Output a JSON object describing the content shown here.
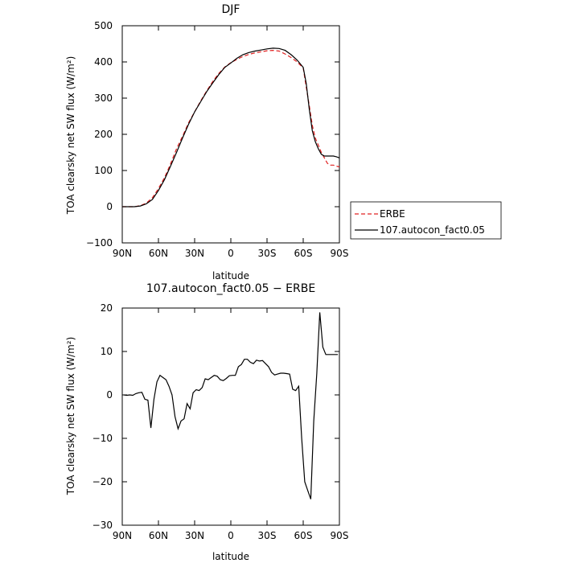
{
  "chart_data": [
    {
      "type": "line",
      "title": "DJF",
      "xlabel": "latitude",
      "ylabel": "TOA clearsky net SW flux (W/m²)",
      "xlim": [
        90,
        -90
      ],
      "ylim": [
        -100,
        500
      ],
      "x_ticks": [
        90,
        60,
        30,
        0,
        -30,
        -60,
        -90
      ],
      "x_tick_labels": [
        "90N",
        "60N",
        "30N",
        "0",
        "30S",
        "60S",
        "90S"
      ],
      "y_ticks": [
        -100,
        0,
        100,
        200,
        300,
        400,
        500
      ],
      "y_tick_labels": [
        "−100",
        "0",
        "100",
        "200",
        "300",
        "400",
        "500"
      ],
      "legend_placement": "right",
      "series": [
        {
          "name": "ERBE",
          "color": "#e02020",
          "dash": "dashed",
          "x": [
            90,
            85,
            80,
            75,
            70,
            65,
            60,
            55,
            50,
            45,
            40,
            35,
            30,
            25,
            20,
            15,
            10,
            5,
            0,
            -5,
            -10,
            -15,
            -20,
            -25,
            -30,
            -35,
            -40,
            -45,
            -50,
            -55,
            -60,
            -62.5,
            -65,
            -67.5,
            -70,
            -72.5,
            -75,
            -77.5,
            -80,
            -82.5,
            -85,
            -87.5,
            -90
          ],
          "y": [
            0,
            0,
            0,
            3,
            10,
            25,
            50,
            80,
            118,
            160,
            195,
            232,
            262,
            292,
            320,
            346,
            368,
            386,
            398,
            407,
            415,
            421,
            425,
            428,
            431,
            432,
            430,
            422,
            412,
            400,
            383,
            330,
            280,
            225,
            190,
            170,
            150,
            135,
            120,
            115,
            115,
            112,
            110
          ]
        },
        {
          "name": "107.autocon_fact0.05",
          "color": "#000000",
          "dash": "solid",
          "x": [
            90,
            85,
            80,
            75,
            70,
            65,
            60,
            55,
            50,
            45,
            40,
            35,
            30,
            25,
            20,
            15,
            10,
            5,
            0,
            -5,
            -10,
            -15,
            -20,
            -25,
            -30,
            -35,
            -40,
            -45,
            -50,
            -55,
            -60,
            -62.5,
            -65,
            -67.5,
            -70,
            -72.5,
            -75,
            -77.5,
            -80,
            -82.5,
            -85,
            -87.5,
            -90
          ],
          "y": [
            0,
            0,
            0,
            2,
            8,
            20,
            45,
            75,
            112,
            150,
            190,
            228,
            262,
            290,
            318,
            342,
            365,
            385,
            397,
            410,
            420,
            426,
            430,
            433,
            436,
            438,
            437,
            432,
            420,
            405,
            385,
            340,
            270,
            210,
            180,
            160,
            145,
            140,
            140,
            140,
            140,
            138,
            135
          ]
        }
      ]
    },
    {
      "type": "line",
      "title": "107.autocon_fact0.05 − ERBE",
      "xlabel": "latitude",
      "ylabel": "TOA clearsky net SW flux (W/m²)",
      "xlim": [
        90,
        -90
      ],
      "ylim": [
        -30,
        20
      ],
      "x_ticks": [
        90,
        60,
        30,
        0,
        -30,
        -60,
        -90
      ],
      "x_tick_labels": [
        "90N",
        "60N",
        "30N",
        "0",
        "30S",
        "60S",
        "90S"
      ],
      "y_ticks": [
        -30,
        -20,
        -10,
        0,
        10,
        20
      ],
      "y_tick_labels": [
        "−30",
        "−20",
        "−10",
        "0",
        "10",
        "20"
      ],
      "series": [
        {
          "color": "#000000",
          "dash": "solid",
          "x": [
            88.75,
            86.25,
            83.75,
            81.25,
            78.75,
            76.25,
            73.75,
            71.25,
            68.75,
            66.25,
            63.75,
            61.25,
            58.75,
            56.25,
            53.75,
            51.25,
            48.75,
            46.25,
            43.75,
            41.25,
            38.75,
            36.25,
            33.75,
            31.25,
            28.75,
            26.25,
            23.75,
            21.25,
            18.75,
            16.25,
            13.75,
            11.25,
            8.75,
            6.25,
            3.75,
            1.25,
            -1.25,
            -3.75,
            -6.25,
            -8.75,
            -11.25,
            -13.75,
            -16.25,
            -18.75,
            -21.25,
            -23.75,
            -26.25,
            -28.75,
            -31.25,
            -33.75,
            -36.25,
            -38.75,
            -41.25,
            -43.75,
            -46.25,
            -48.75,
            -51.25,
            -53.75,
            -56.25,
            -58.75,
            -61.25,
            -63.75,
            -66.25,
            -68.75,
            -71.25,
            -73.75,
            -76.25,
            -78.75,
            -81.25,
            -83.75,
            -86.25,
            -88.75
          ],
          "y": [
            0.0,
            -0.1,
            0.0,
            -0.1,
            0.3,
            0.5,
            0.6,
            -1.0,
            -1.2,
            -7.6,
            -1.0,
            3.0,
            4.5,
            4.0,
            3.5,
            2.0,
            0.0,
            -5.0,
            -7.8,
            -6.0,
            -5.5,
            -2.0,
            -3.2,
            0.5,
            1.2,
            1.0,
            1.7,
            3.7,
            3.5,
            4.0,
            4.5,
            4.3,
            3.5,
            3.3,
            3.8,
            4.4,
            4.5,
            4.5,
            6.5,
            7.0,
            8.2,
            8.2,
            7.5,
            7.2,
            8.0,
            7.8,
            7.9,
            7.2,
            6.5,
            5.2,
            4.6,
            4.8,
            5.0,
            5.0,
            4.9,
            4.8,
            1.3,
            1.0,
            2.0,
            -10.0,
            -20.0,
            -22.0,
            -24.0,
            -6.0,
            5.0,
            19.0,
            11.0,
            9.3,
            9.3,
            9.3,
            9.3,
            9.3
          ]
        }
      ]
    }
  ]
}
